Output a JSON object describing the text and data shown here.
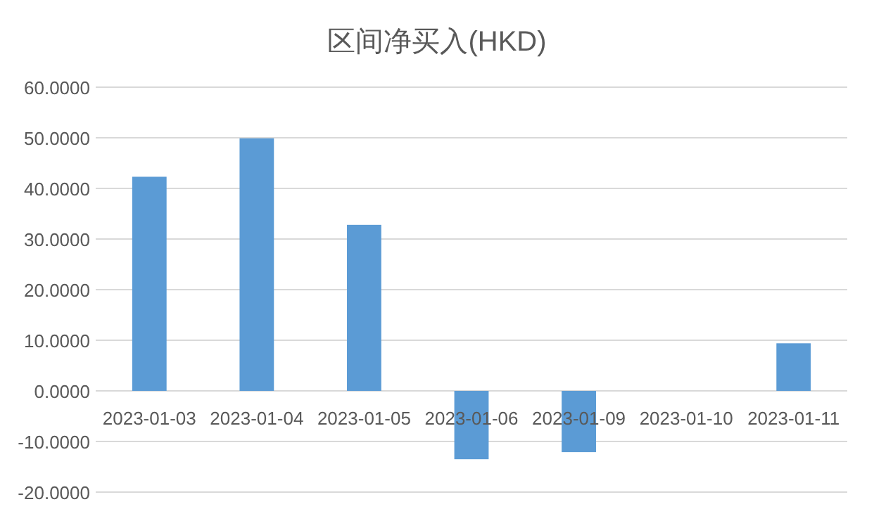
{
  "chart_data": {
    "type": "bar",
    "title": "区间净买入(HKD)",
    "categories": [
      "2023-01-03",
      "2023-01-04",
      "2023-01-05",
      "2023-01-06",
      "2023-01-09",
      "2023-01-10",
      "2023-01-11"
    ],
    "values": [
      42.3,
      49.9,
      32.8,
      -13.5,
      -12.1,
      0,
      9.4
    ],
    "color": "#5b9bd5",
    "ylim": [
      -20,
      60
    ],
    "yticks": [
      {
        "value": -20,
        "label": "-20.0000"
      },
      {
        "value": -10,
        "label": "-10.0000"
      },
      {
        "value": 0,
        "label": "0.0000"
      },
      {
        "value": 10,
        "label": "10.0000"
      },
      {
        "value": 20,
        "label": "20.0000"
      },
      {
        "value": 30,
        "label": "30.0000"
      },
      {
        "value": 40,
        "label": "40.0000"
      },
      {
        "value": 50,
        "label": "50.0000"
      },
      {
        "value": 60,
        "label": "60.0000"
      }
    ],
    "grid": "y"
  }
}
